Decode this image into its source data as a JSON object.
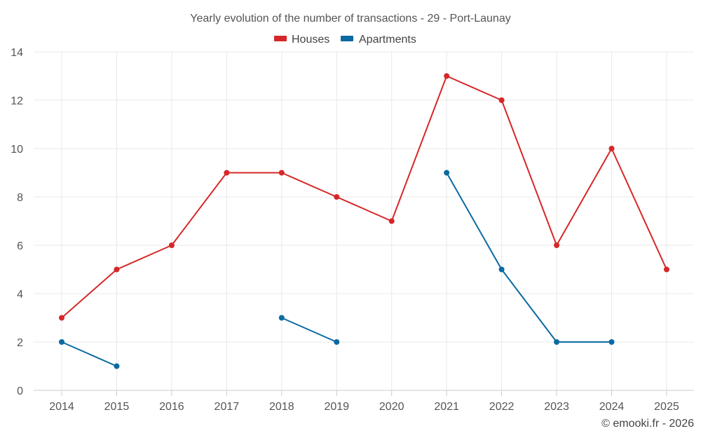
{
  "chart_data": {
    "type": "line",
    "title": "Yearly evolution of the number of transactions - 29 - Port-Launay",
    "xlabel": "",
    "ylabel": "",
    "categories": [
      "2014",
      "2015",
      "2016",
      "2017",
      "2018",
      "2019",
      "2020",
      "2021",
      "2022",
      "2023",
      "2024",
      "2025"
    ],
    "ylim": [
      0,
      14
    ],
    "yticks": [
      "0",
      "2",
      "4",
      "6",
      "8",
      "10",
      "12",
      "14"
    ],
    "grid": true,
    "legend_position": "top-center",
    "series": [
      {
        "name": "Houses",
        "color": "#d62728",
        "values": [
          3,
          5,
          6,
          9,
          9,
          8,
          7,
          13,
          12,
          6,
          10,
          5
        ]
      },
      {
        "name": "Apartments",
        "color": "#0b6aa2",
        "values": [
          2,
          1,
          null,
          null,
          3,
          2,
          null,
          9,
          5,
          2,
          2,
          null
        ]
      }
    ]
  },
  "credit": "© emooki.fr - 2026"
}
